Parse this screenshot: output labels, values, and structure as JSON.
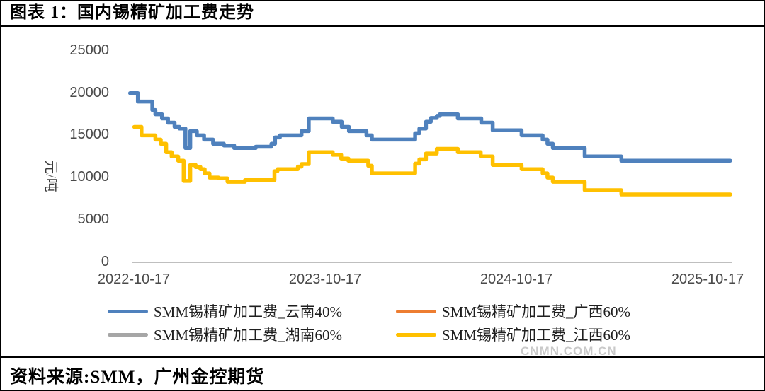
{
  "header": {
    "title": "图表 1：国内锡精矿加工费走势"
  },
  "footer": {
    "source": "资料来源:SMM，广州金控期货"
  },
  "watermark": "CNMN.COM.CN",
  "chart_data": {
    "type": "line",
    "title": "图表 1：国内锡精矿加工费走势",
    "ylabel": "元/吨",
    "ylim": [
      0,
      25000
    ],
    "y_ticks": [
      25000,
      20000,
      15000,
      10000,
      5000,
      0
    ],
    "x_tick_labels": [
      "2022-10-17",
      "2023-10-17",
      "2024-10-17",
      "2025-10-17"
    ],
    "grid": false,
    "legend_position": "bottom",
    "axis_color": "#bfbfbf",
    "x_note": "step (weekly) series; x stored as fraction of the span from 2022-10-17 to end of line (~just past 2025-10-17)",
    "series": [
      {
        "name": "SMM锡精矿加工费_云南40%",
        "color": "#4f81bd",
        "hidden": false,
        "steps": [
          [
            0.002,
            20000
          ],
          [
            0.015,
            19000
          ],
          [
            0.039,
            18000
          ],
          [
            0.044,
            17500
          ],
          [
            0.055,
            17000
          ],
          [
            0.065,
            16500
          ],
          [
            0.076,
            16000
          ],
          [
            0.084,
            15800
          ],
          [
            0.094,
            13500
          ],
          [
            0.102,
            15500
          ],
          [
            0.113,
            15000
          ],
          [
            0.125,
            14500
          ],
          [
            0.14,
            14000
          ],
          [
            0.158,
            13800
          ],
          [
            0.175,
            13500
          ],
          [
            0.211,
            13650
          ],
          [
            0.237,
            14000
          ],
          [
            0.243,
            14750
          ],
          [
            0.251,
            15000
          ],
          [
            0.287,
            15500
          ],
          [
            0.299,
            17000
          ],
          [
            0.339,
            16600
          ],
          [
            0.354,
            16000
          ],
          [
            0.366,
            15500
          ],
          [
            0.395,
            15000
          ],
          [
            0.404,
            14500
          ],
          [
            0.476,
            15250
          ],
          [
            0.483,
            15800
          ],
          [
            0.494,
            16600
          ],
          [
            0.502,
            17050
          ],
          [
            0.512,
            17300
          ],
          [
            0.517,
            17500
          ],
          [
            0.547,
            17000
          ],
          [
            0.586,
            16500
          ],
          [
            0.605,
            15600
          ],
          [
            0.653,
            15000
          ],
          [
            0.688,
            14500
          ],
          [
            0.696,
            14000
          ],
          [
            0.705,
            13500
          ],
          [
            0.758,
            12500
          ],
          [
            0.819,
            12000
          ]
        ]
      },
      {
        "name": "SMM锡精矿加工费_广西60%",
        "color": "#ed7d31",
        "hidden": true,
        "note": "line not visible in plot (fully overlapped)",
        "steps": []
      },
      {
        "name": "SMM锡精矿加工费_湖南60%",
        "color": "#a6a6a6",
        "hidden": true,
        "note": "line not visible in plot (fully overlapped)",
        "steps": []
      },
      {
        "name": "SMM锡精矿加工费_江西60%",
        "color": "#ffc000",
        "hidden": false,
        "steps": [
          [
            0.009,
            16000
          ],
          [
            0.021,
            15000
          ],
          [
            0.044,
            14500
          ],
          [
            0.053,
            14000
          ],
          [
            0.062,
            13000
          ],
          [
            0.071,
            12500
          ],
          [
            0.082,
            12000
          ],
          [
            0.091,
            9600
          ],
          [
            0.102,
            11500
          ],
          [
            0.111,
            11250
          ],
          [
            0.119,
            11000
          ],
          [
            0.126,
            10500
          ],
          [
            0.134,
            10000
          ],
          [
            0.149,
            9900
          ],
          [
            0.164,
            9500
          ],
          [
            0.193,
            9700
          ],
          [
            0.242,
            10750
          ],
          [
            0.247,
            11000
          ],
          [
            0.281,
            11300
          ],
          [
            0.287,
            11600
          ],
          [
            0.299,
            13000
          ],
          [
            0.339,
            12700
          ],
          [
            0.353,
            12250
          ],
          [
            0.365,
            12000
          ],
          [
            0.398,
            11400
          ],
          [
            0.404,
            10500
          ],
          [
            0.476,
            11650
          ],
          [
            0.483,
            12150
          ],
          [
            0.494,
            12850
          ],
          [
            0.512,
            13400
          ],
          [
            0.547,
            13000
          ],
          [
            0.585,
            12500
          ],
          [
            0.605,
            11500
          ],
          [
            0.653,
            11000
          ],
          [
            0.688,
            10500
          ],
          [
            0.696,
            10000
          ],
          [
            0.705,
            9500
          ],
          [
            0.758,
            8500
          ],
          [
            0.819,
            8000
          ]
        ]
      }
    ]
  }
}
